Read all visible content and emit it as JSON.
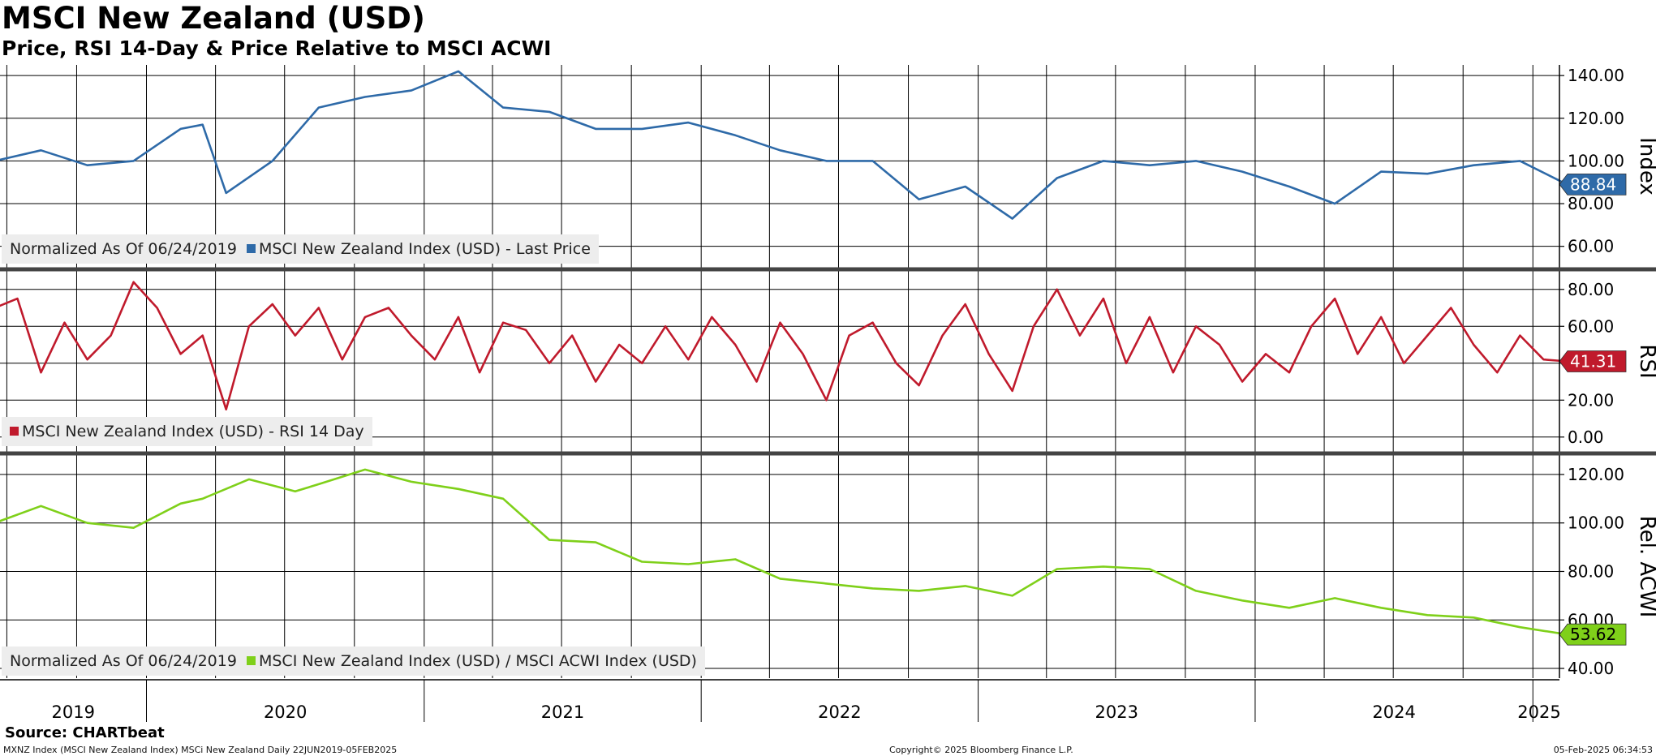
{
  "title": "MSCI New Zealand (USD)",
  "subtitle": "Price, RSI 14-Day & Price Relative to MSCI ACWI",
  "panels": {
    "price": {
      "axis_label": "Index",
      "legend_prefix": "Normalized As Of 06/24/2019",
      "legend_series": "MSCI New Zealand Index (USD) - Last Price",
      "last_value_label": "88.84",
      "color": "#2e6aa8"
    },
    "rsi": {
      "axis_label": "RSI",
      "legend_series": "MSCI New Zealand Index (USD) - RSI 14 Day",
      "last_value_label": "41.31",
      "color": "#c01a2c"
    },
    "rel": {
      "axis_label": "Rel. ACWI",
      "legend_prefix": "Normalized As Of 06/24/2019",
      "legend_series": "MSCI New Zealand Index (USD) / MSCI ACWI Index (USD)",
      "last_value_label": "53.62",
      "color": "#7fd01a"
    }
  },
  "footer": {
    "source": "Source: CHARTbeat",
    "left": "MXNZ Index (MSCI New Zealand Index) MSCi New Zealand  Daily 22JUN2019-05FEB2025",
    "center": "Copyright© 2025 Bloomberg Finance L.P.",
    "right": "05-Feb-2025 06:34:53"
  },
  "chart_data": [
    {
      "type": "line",
      "ylabel": "Index",
      "ylim": [
        50,
        145
      ],
      "yticks": [
        "60.00",
        "80.00",
        "100.00",
        "120.00",
        "140.00"
      ],
      "xticks": [
        "2019",
        "2020",
        "2021",
        "2022",
        "2023",
        "2024",
        "2025"
      ],
      "series": [
        {
          "name": "MSCI New Zealand Index (USD) - Last Price",
          "x": [
            "2019-06",
            "2019-08",
            "2019-10",
            "2019-12",
            "2020-02",
            "2020-03",
            "2020-04",
            "2020-06",
            "2020-08",
            "2020-10",
            "2020-12",
            "2021-02",
            "2021-04",
            "2021-06",
            "2021-08",
            "2021-10",
            "2021-12",
            "2022-02",
            "2022-04",
            "2022-06",
            "2022-08",
            "2022-10",
            "2022-12",
            "2023-02",
            "2023-04",
            "2023-06",
            "2023-08",
            "2023-10",
            "2023-12",
            "2024-02",
            "2024-04",
            "2024-06",
            "2024-08",
            "2024-10",
            "2024-12",
            "2025-02"
          ],
          "values": [
            100,
            105,
            98,
            100,
            115,
            117,
            85,
            100,
            125,
            130,
            133,
            142,
            125,
            123,
            115,
            115,
            118,
            112,
            105,
            100,
            100,
            82,
            88,
            73,
            92,
            100,
            98,
            100,
            95,
            88,
            80,
            95,
            94,
            98,
            100,
            89
          ]
        }
      ]
    },
    {
      "type": "line",
      "ylabel": "RSI",
      "ylim": [
        -8,
        90
      ],
      "yticks": [
        "0.00",
        "20.00",
        "40.00",
        "60.00",
        "80.00"
      ],
      "xticks": [
        "2019",
        "2020",
        "2021",
        "2022",
        "2023",
        "2024",
        "2025"
      ],
      "series": [
        {
          "name": "MSCI New Zealand Index (USD) - RSI 14 Day",
          "x": [
            "2019-06",
            "2019-07",
            "2019-08",
            "2019-09",
            "2019-10",
            "2019-11",
            "2019-12",
            "2020-01",
            "2020-02",
            "2020-03",
            "2020-04",
            "2020-05",
            "2020-06",
            "2020-07",
            "2020-08",
            "2020-09",
            "2020-10",
            "2020-11",
            "2020-12",
            "2021-01",
            "2021-02",
            "2021-03",
            "2021-04",
            "2021-05",
            "2021-06",
            "2021-07",
            "2021-08",
            "2021-09",
            "2021-10",
            "2021-11",
            "2021-12",
            "2022-01",
            "2022-02",
            "2022-03",
            "2022-04",
            "2022-05",
            "2022-06",
            "2022-07",
            "2022-08",
            "2022-09",
            "2022-10",
            "2022-11",
            "2022-12",
            "2023-01",
            "2023-02",
            "2023-03",
            "2023-04",
            "2023-05",
            "2023-06",
            "2023-07",
            "2023-08",
            "2023-09",
            "2023-10",
            "2023-11",
            "2023-12",
            "2024-01",
            "2024-02",
            "2024-03",
            "2024-04",
            "2024-05",
            "2024-06",
            "2024-07",
            "2024-08",
            "2024-09",
            "2024-10",
            "2024-11",
            "2024-12",
            "2025-01",
            "2025-02"
          ],
          "values": [
            70,
            75,
            35,
            62,
            42,
            55,
            84,
            70,
            45,
            55,
            15,
            60,
            72,
            55,
            70,
            42,
            65,
            70,
            55,
            42,
            65,
            35,
            62,
            58,
            40,
            55,
            30,
            50,
            40,
            60,
            42,
            65,
            50,
            30,
            62,
            45,
            20,
            55,
            62,
            40,
            28,
            55,
            72,
            45,
            25,
            60,
            80,
            55,
            75,
            40,
            65,
            35,
            60,
            50,
            30,
            45,
            35,
            60,
            75,
            45,
            65,
            40,
            55,
            70,
            50,
            35,
            55,
            42,
            41
          ]
        }
      ]
    },
    {
      "type": "line",
      "ylabel": "Rel. ACWI",
      "ylim": [
        36,
        128
      ],
      "yticks": [
        "40.00",
        "60.00",
        "80.00",
        "100.00",
        "120.00"
      ],
      "xticks": [
        "2019",
        "2020",
        "2021",
        "2022",
        "2023",
        "2024",
        "2025"
      ],
      "series": [
        {
          "name": "MSCI New Zealand Index (USD) / MSCI ACWI Index (USD)",
          "x": [
            "2019-06",
            "2019-08",
            "2019-10",
            "2019-12",
            "2020-02",
            "2020-03",
            "2020-05",
            "2020-07",
            "2020-08",
            "2020-10",
            "2020-12",
            "2021-02",
            "2021-04",
            "2021-06",
            "2021-08",
            "2021-10",
            "2021-12",
            "2022-02",
            "2022-04",
            "2022-06",
            "2022-08",
            "2022-10",
            "2022-12",
            "2023-02",
            "2023-04",
            "2023-06",
            "2023-08",
            "2023-10",
            "2023-12",
            "2024-02",
            "2024-04",
            "2024-06",
            "2024-08",
            "2024-10",
            "2024-12",
            "2025-02"
          ],
          "values": [
            100,
            107,
            100,
            98,
            108,
            110,
            118,
            113,
            116,
            122,
            117,
            114,
            110,
            93,
            92,
            84,
            83,
            85,
            77,
            75,
            73,
            72,
            74,
            70,
            81,
            82,
            81,
            72,
            68,
            65,
            69,
            65,
            62,
            61,
            57,
            54
          ]
        }
      ]
    }
  ]
}
